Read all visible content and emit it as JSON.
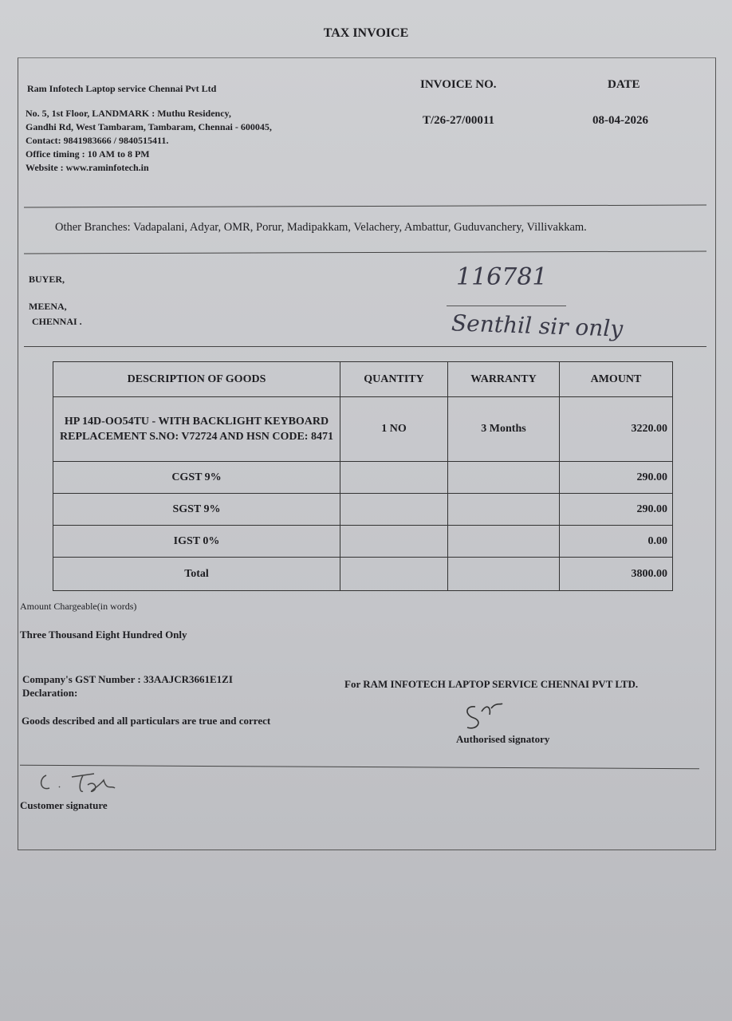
{
  "title": "TAX INVOICE",
  "company": {
    "name": "Ram Infotech Laptop service Chennai Pvt Ltd",
    "address_line1": "No. 5, 1st Floor, LANDMARK : Muthu Residency,",
    "address_line2": "Gandhi Rd, West Tambaram, Tambaram, Chennai - 600045,",
    "contact": "Contact: 9841983666 / 9840515411.",
    "timing": "Office timing : 10 AM to 8 PM",
    "website": "Website : www.raminfotech.in"
  },
  "invoice": {
    "no_label": "INVOICE NO.",
    "no_value": "T/26-27/00011",
    "date_label": "DATE",
    "date_value": "08-04-2026"
  },
  "branches": "Other Branches: Vadapalani, Adyar, OMR, Porur, Madipakkam, Velachery, Ambattur, Guduvanchery, Villivakkam.",
  "buyer": {
    "label": "BUYER,",
    "name": "MEENA,",
    "city": "CHENNAI ."
  },
  "handwriting": {
    "number": "116781",
    "note": "Senthil sir only"
  },
  "table": {
    "headers": [
      "DESCRIPTION OF GOODS",
      "QUANTITY",
      "WARRANTY",
      "AMOUNT"
    ],
    "item": {
      "description": "HP 14D-OO54TU - WITH BACKLIGHT KEYBOARD REPLACEMENT S.NO: V72724 AND HSN CODE: 8471",
      "quantity": "1 NO",
      "warranty": "3 Months",
      "amount": "3220.00"
    },
    "rows": [
      {
        "label": "CGST 9%",
        "amount": "290.00"
      },
      {
        "label": "SGST 9%",
        "amount": "290.00"
      },
      {
        "label": "IGST 0%",
        "amount": "0.00"
      },
      {
        "label": "Total",
        "amount": "3800.00"
      }
    ]
  },
  "amount_words_label": "Amount Chargeable(in words)",
  "amount_words": "Three Thousand Eight Hundred Only",
  "gst": "Company's GST Number : 33AAJCR3661E1ZI",
  "declaration_label": "Declaration:",
  "declaration": "Goods described and all particulars are true and correct",
  "for_company": "For RAM INFOTECH LAPTOP SERVICE CHENNAI PVT LTD.",
  "authorised": "Authorised signatory",
  "customer_signature": "Customer signature"
}
